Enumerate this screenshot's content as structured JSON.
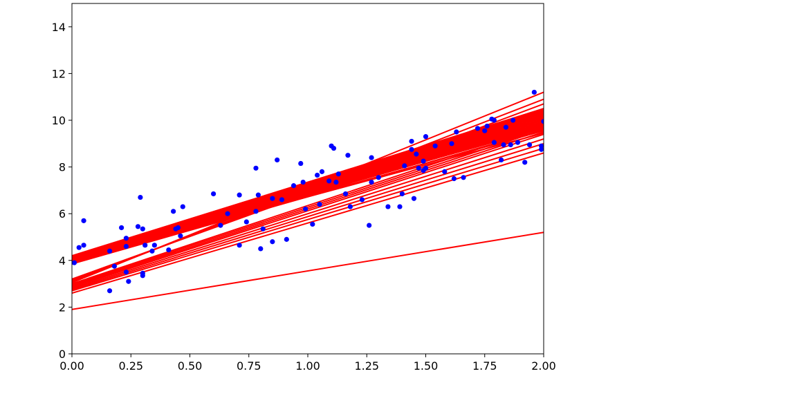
{
  "chart_data": {
    "type": "scatter",
    "title": "",
    "xlabel": "",
    "ylabel": "",
    "xlim": [
      0,
      2
    ],
    "ylim": [
      0,
      15
    ],
    "grid": false,
    "legend": "none",
    "x_ticks": [
      0,
      0.25,
      0.5,
      0.75,
      1.0,
      1.25,
      1.5,
      1.75,
      2.0
    ],
    "x_tick_labels": [
      "0.00",
      "0.25",
      "0.50",
      "0.75",
      "1.00",
      "1.25",
      "1.50",
      "1.75",
      "2.00"
    ],
    "y_ticks": [
      0,
      2,
      4,
      6,
      8,
      10,
      12,
      14
    ],
    "y_tick_labels": [
      "0",
      "2",
      "4",
      "6",
      "8",
      "10",
      "12",
      "14"
    ],
    "colors": {
      "points": "#0000ff",
      "lines": "#ff0000"
    },
    "series": [
      {
        "type": "scatter",
        "points": [
          [
            0.01,
            3.9
          ],
          [
            0.03,
            4.55
          ],
          [
            0.05,
            4.65
          ],
          [
            0.05,
            5.7
          ],
          [
            0.16,
            4.4
          ],
          [
            0.16,
            2.7
          ],
          [
            0.18,
            3.75
          ],
          [
            0.21,
            5.4
          ],
          [
            0.23,
            4.95
          ],
          [
            0.23,
            4.6
          ],
          [
            0.23,
            3.5
          ],
          [
            0.24,
            3.1
          ],
          [
            0.28,
            5.45
          ],
          [
            0.29,
            6.7
          ],
          [
            0.3,
            5.35
          ],
          [
            0.3,
            3.45
          ],
          [
            0.3,
            3.35
          ],
          [
            0.31,
            4.65
          ],
          [
            0.34,
            4.4
          ],
          [
            0.35,
            4.65
          ],
          [
            0.41,
            4.45
          ],
          [
            0.43,
            6.1
          ],
          [
            0.44,
            5.35
          ],
          [
            0.45,
            5.4
          ],
          [
            0.46,
            5.05
          ],
          [
            0.47,
            6.3
          ],
          [
            0.6,
            6.85
          ],
          [
            0.63,
            5.5
          ],
          [
            0.66,
            6.0
          ],
          [
            0.71,
            4.65
          ],
          [
            0.71,
            6.8
          ],
          [
            0.74,
            5.65
          ],
          [
            0.78,
            7.95
          ],
          [
            0.78,
            6.1
          ],
          [
            0.79,
            6.8
          ],
          [
            0.8,
            4.5
          ],
          [
            0.81,
            5.35
          ],
          [
            0.85,
            4.8
          ],
          [
            0.85,
            6.65
          ],
          [
            0.87,
            8.3
          ],
          [
            0.89,
            6.6
          ],
          [
            0.91,
            4.9
          ],
          [
            0.94,
            7.2
          ],
          [
            0.97,
            8.15
          ],
          [
            0.98,
            7.35
          ],
          [
            0.99,
            6.2
          ],
          [
            1.02,
            5.55
          ],
          [
            1.04,
            7.65
          ],
          [
            1.05,
            6.4
          ],
          [
            1.06,
            7.8
          ],
          [
            1.09,
            7.4
          ],
          [
            1.1,
            8.9
          ],
          [
            1.11,
            8.8
          ],
          [
            1.12,
            7.35
          ],
          [
            1.13,
            7.7
          ],
          [
            1.16,
            6.85
          ],
          [
            1.17,
            8.5
          ],
          [
            1.18,
            6.3
          ],
          [
            1.23,
            6.6
          ],
          [
            1.26,
            5.5
          ],
          [
            1.27,
            7.35
          ],
          [
            1.27,
            8.4
          ],
          [
            1.3,
            7.55
          ],
          [
            1.34,
            6.3
          ],
          [
            1.39,
            6.3
          ],
          [
            1.4,
            6.85
          ],
          [
            1.41,
            8.05
          ],
          [
            1.44,
            8.75
          ],
          [
            1.44,
            9.1
          ],
          [
            1.45,
            6.65
          ],
          [
            1.46,
            8.55
          ],
          [
            1.47,
            7.95
          ],
          [
            1.49,
            8.25
          ],
          [
            1.49,
            7.85
          ],
          [
            1.5,
            9.3
          ],
          [
            1.5,
            7.95
          ],
          [
            1.54,
            8.9
          ],
          [
            1.58,
            7.8
          ],
          [
            1.61,
            9.0
          ],
          [
            1.62,
            7.5
          ],
          [
            1.63,
            9.5
          ],
          [
            1.66,
            7.55
          ],
          [
            1.72,
            9.65
          ],
          [
            1.75,
            9.55
          ],
          [
            1.76,
            9.75
          ],
          [
            1.78,
            10.05
          ],
          [
            1.79,
            10.0
          ],
          [
            1.79,
            9.05
          ],
          [
            1.82,
            8.3
          ],
          [
            1.83,
            8.95
          ],
          [
            1.84,
            9.7
          ],
          [
            1.86,
            8.95
          ],
          [
            1.87,
            10.0
          ],
          [
            1.89,
            9.05
          ],
          [
            1.92,
            8.2
          ],
          [
            1.94,
            8.95
          ],
          [
            1.96,
            11.2
          ],
          [
            1.99,
            8.9
          ],
          [
            1.99,
            8.75
          ],
          [
            2.0,
            9.95
          ]
        ]
      },
      {
        "type": "lines",
        "segments": [
          [
            1.9,
            5.2
          ],
          [
            2.6,
            8.6
          ],
          [
            2.7,
            8.8
          ],
          [
            2.75,
            9.0
          ],
          [
            2.8,
            9.2
          ],
          [
            2.85,
            9.4
          ],
          [
            2.9,
            9.5
          ],
          [
            2.95,
            9.6
          ],
          [
            3.0,
            9.7
          ],
          [
            3.05,
            11.2
          ],
          [
            3.1,
            10.9
          ],
          [
            3.15,
            10.7
          ],
          [
            3.2,
            10.5
          ],
          [
            3.85,
            9.6
          ],
          [
            3.88,
            9.7
          ],
          [
            3.9,
            9.75
          ],
          [
            3.92,
            9.8
          ],
          [
            3.94,
            9.85
          ],
          [
            3.96,
            9.9
          ],
          [
            3.98,
            9.95
          ],
          [
            4.0,
            10.0
          ],
          [
            4.02,
            10.05
          ],
          [
            4.04,
            10.1
          ],
          [
            4.06,
            10.15
          ],
          [
            4.08,
            10.2
          ],
          [
            4.1,
            10.25
          ],
          [
            4.12,
            10.3
          ],
          [
            4.14,
            10.35
          ],
          [
            4.16,
            10.4
          ],
          [
            4.18,
            10.45
          ],
          [
            4.2,
            10.5
          ],
          [
            3.95,
            9.55
          ],
          [
            4.05,
            9.65
          ],
          [
            4.0,
            9.45
          ],
          [
            4.1,
            9.75
          ]
        ]
      }
    ]
  }
}
